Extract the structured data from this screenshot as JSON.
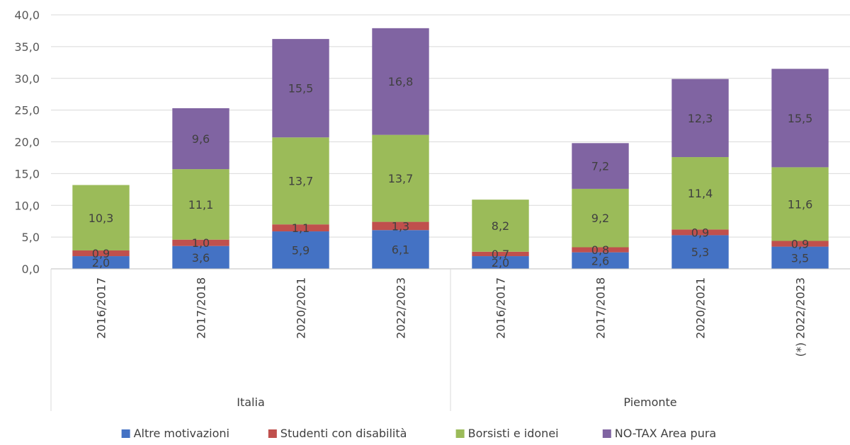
{
  "chart_data": {
    "type": "bar",
    "stacked": true,
    "groups": [
      {
        "name": "Italia",
        "categories": [
          "2016/2017",
          "2017/2018",
          "2020/2021",
          "2022/2023"
        ]
      },
      {
        "name": "Piemonte",
        "categories": [
          "2016/2017",
          "2017/2018",
          "2020/2021",
          "(*) 2022/2023"
        ]
      }
    ],
    "series": [
      {
        "name": "Altre motivazioni",
        "color": "#4472C4",
        "values": [
          2.0,
          3.6,
          5.9,
          6.1,
          2.0,
          2.6,
          5.3,
          3.5
        ],
        "labels": [
          "2,0",
          "3,6",
          "5,9",
          "6,1",
          "2,0",
          "2,6",
          "5,3",
          "3,5"
        ]
      },
      {
        "name": "Studenti con disabilità",
        "color": "#C0504D",
        "values": [
          0.9,
          1.0,
          1.1,
          1.3,
          0.7,
          0.8,
          0.9,
          0.9
        ],
        "labels": [
          "0,9",
          "1,0",
          "1,1",
          "1,3",
          "0,7",
          "0,8",
          "0,9",
          "0,9"
        ]
      },
      {
        "name": "Borsisti e idonei",
        "color": "#9BBB59",
        "values": [
          10.3,
          11.1,
          13.7,
          13.7,
          8.2,
          9.2,
          11.4,
          11.6
        ],
        "labels": [
          "10,3",
          "11,1",
          "13,7",
          "13,7",
          "8,2",
          "9,2",
          "11,4",
          "11,6"
        ]
      },
      {
        "name": "NO-TAX Area pura",
        "color": "#8064A2",
        "values": [
          0,
          9.6,
          15.5,
          16.8,
          0,
          7.2,
          12.3,
          15.5
        ],
        "labels": [
          "",
          "9,6",
          "15,5",
          "16,8",
          "",
          "7,2",
          "12,3",
          "15,5"
        ]
      }
    ],
    "y_ticks": [
      "0,0",
      "5,0",
      "10,0",
      "15,0",
      "20,0",
      "25,0",
      "30,0",
      "35,0",
      "40,0"
    ],
    "ylim": [
      0,
      40
    ],
    "grid": true,
    "legend_position": "bottom"
  }
}
